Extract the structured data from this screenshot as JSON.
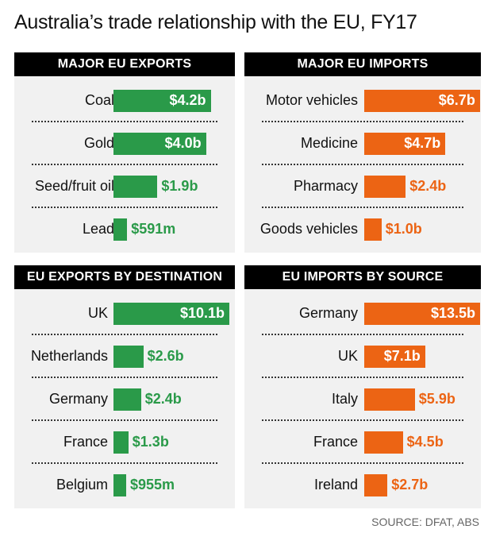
{
  "title": "Australia’s trade relationship with the EU, FY17",
  "source": "SOURCE: DFAT, ABS",
  "colors": {
    "exports": "#2a9a49",
    "imports": "#ec6414",
    "header_bg": "#000000",
    "panel_bg": "#f1f1f1"
  },
  "chart_data": [
    {
      "type": "bar",
      "title": "MAJOR EU EXPORTS",
      "categories": [
        "Coal",
        "Gold",
        "Seed/fruit oil",
        "Lead"
      ],
      "values": [
        4.2,
        4.0,
        1.9,
        0.591
      ],
      "value_labels": [
        "$4.2b",
        "$4.0b",
        "$1.9b",
        "$591m"
      ],
      "unit": "$b",
      "color": "exports"
    },
    {
      "type": "bar",
      "title": "MAJOR EU IMPORTS",
      "categories": [
        "Motor vehicles",
        "Medicine",
        "Pharmacy",
        "Goods vehicles"
      ],
      "values": [
        6.7,
        4.7,
        2.4,
        1.0
      ],
      "value_labels": [
        "$6.7b",
        "$4.7b",
        "$2.4b",
        "$1.0b"
      ],
      "unit": "$b",
      "color": "imports"
    },
    {
      "type": "bar",
      "title": "EU EXPORTS BY DESTINATION",
      "categories": [
        "UK",
        "Netherlands",
        "Germany",
        "France",
        "Belgium"
      ],
      "values": [
        10.1,
        2.6,
        2.4,
        1.3,
        0.955
      ],
      "value_labels": [
        "$10.1b",
        "$2.6b",
        "$2.4b",
        "$1.3b",
        "$955m"
      ],
      "unit": "$b",
      "color": "exports"
    },
    {
      "type": "bar",
      "title": "EU IMPORTS BY SOURCE",
      "categories": [
        "Germany",
        "UK",
        "Italy",
        "France",
        "Ireland"
      ],
      "values": [
        13.5,
        7.1,
        5.9,
        4.5,
        2.7
      ],
      "value_labels": [
        "$13.5b",
        "$7.1b",
        "$5.9b",
        "$4.5b",
        "$2.7b"
      ],
      "unit": "$b",
      "color": "imports"
    }
  ]
}
